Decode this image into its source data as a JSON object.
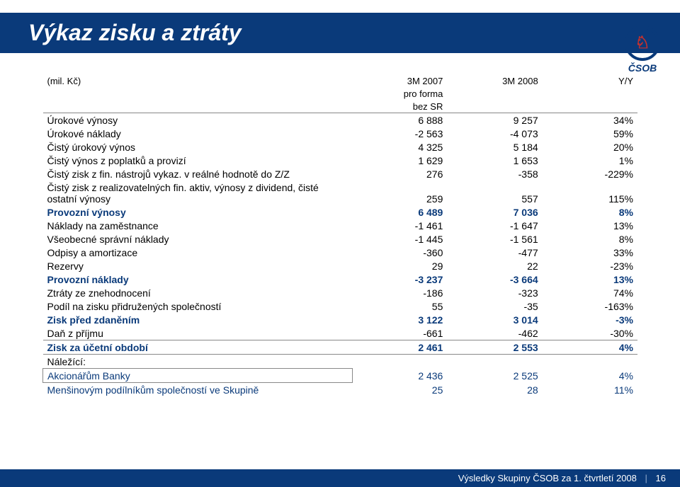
{
  "title": "Výkaz zisku a ztráty",
  "logo_text": "ČSOB",
  "header": {
    "unit": "(mil. Kč)",
    "col1_line1": "3M 2007",
    "col1_line2": "pro forma",
    "col1_line3": "bez SR",
    "col2": "3M 2008",
    "col3": "Y/Y"
  },
  "rows": [
    {
      "label": "Úrokové výnosy",
      "v1": "6 888",
      "v2": "9 257",
      "v3": "34%",
      "bold": false,
      "blue": false
    },
    {
      "label": "Úrokové náklady",
      "v1": "-2 563",
      "v2": "-4 073",
      "v3": "59%",
      "bold": false,
      "blue": false
    },
    {
      "label": "Čistý úrokový výnos",
      "v1": "4 325",
      "v2": "5 184",
      "v3": "20%",
      "bold": false,
      "blue": false
    },
    {
      "label": "Čistý výnos z poplatků a provizí",
      "v1": "1 629",
      "v2": "1 653",
      "v3": "1%",
      "bold": false,
      "blue": false
    },
    {
      "label": "Čistý zisk z fin. nástrojů vykaz. v reálné hodnotě do Z/Z",
      "v1": "276",
      "v2": "-358",
      "v3": "-229%",
      "bold": false,
      "blue": false
    },
    {
      "label": "Čistý zisk z realizovatelných fin. aktiv, výnosy z dividend, čisté ostatní výnosy",
      "v1": "259",
      "v2": "557",
      "v3": "115%",
      "bold": false,
      "blue": false
    },
    {
      "label": "Provozní výnosy",
      "v1": "6 489",
      "v2": "7 036",
      "v3": "8%",
      "bold": true,
      "blue": true
    },
    {
      "label": "Náklady na zaměstnance",
      "v1": "-1 461",
      "v2": "-1 647",
      "v3": "13%",
      "bold": false,
      "blue": false
    },
    {
      "label": "Všeobecné správní náklady",
      "v1": "-1 445",
      "v2": "-1 561",
      "v3": "8%",
      "bold": false,
      "blue": false
    },
    {
      "label": "Odpisy a amortizace",
      "v1": "-360",
      "v2": "-477",
      "v3": "33%",
      "bold": false,
      "blue": false
    },
    {
      "label": "Rezervy",
      "v1": "29",
      "v2": "22",
      "v3": "-23%",
      "bold": false,
      "blue": false
    },
    {
      "label": "Provozní náklady",
      "v1": "-3 237",
      "v2": "-3 664",
      "v3": "13%",
      "bold": true,
      "blue": true
    },
    {
      "label": "Ztráty ze znehodnocení",
      "v1": "-186",
      "v2": "-323",
      "v3": "74%",
      "bold": false,
      "blue": false
    },
    {
      "label": "Podíl na zisku přidružených společností",
      "v1": "55",
      "v2": "-35",
      "v3": "-163%",
      "bold": false,
      "blue": false
    },
    {
      "label": "Zisk před zdaněním",
      "v1": "3 122",
      "v2": "3 014",
      "v3": "-3%",
      "bold": true,
      "blue": true
    },
    {
      "label": "Daň z příjmu",
      "v1": "-661",
      "v2": "-462",
      "v3": "-30%",
      "bold": false,
      "blue": false
    }
  ],
  "net": {
    "label": "Zisk za účetní období",
    "v1": "2 461",
    "v2": "2 553",
    "v3": "4%"
  },
  "belonging_label": "Náležící:",
  "shareholders": {
    "label": "Akcionářům Banky",
    "v1": "2 436",
    "v2": "2 525",
    "v3": "4%"
  },
  "minority": {
    "label": "Menšinovým podílníkům společností ve Skupině",
    "v1": "25",
    "v2": "28",
    "v3": "11%"
  },
  "footer": {
    "text": "Výsledky Skupiny ČSOB za 1. čtvrtletí 2008",
    "page": "16"
  },
  "colors": {
    "brand": "#0a3a7a",
    "accent": "#c9302c",
    "body": "#000000",
    "grid": "#888888",
    "bg": "#ffffff"
  }
}
